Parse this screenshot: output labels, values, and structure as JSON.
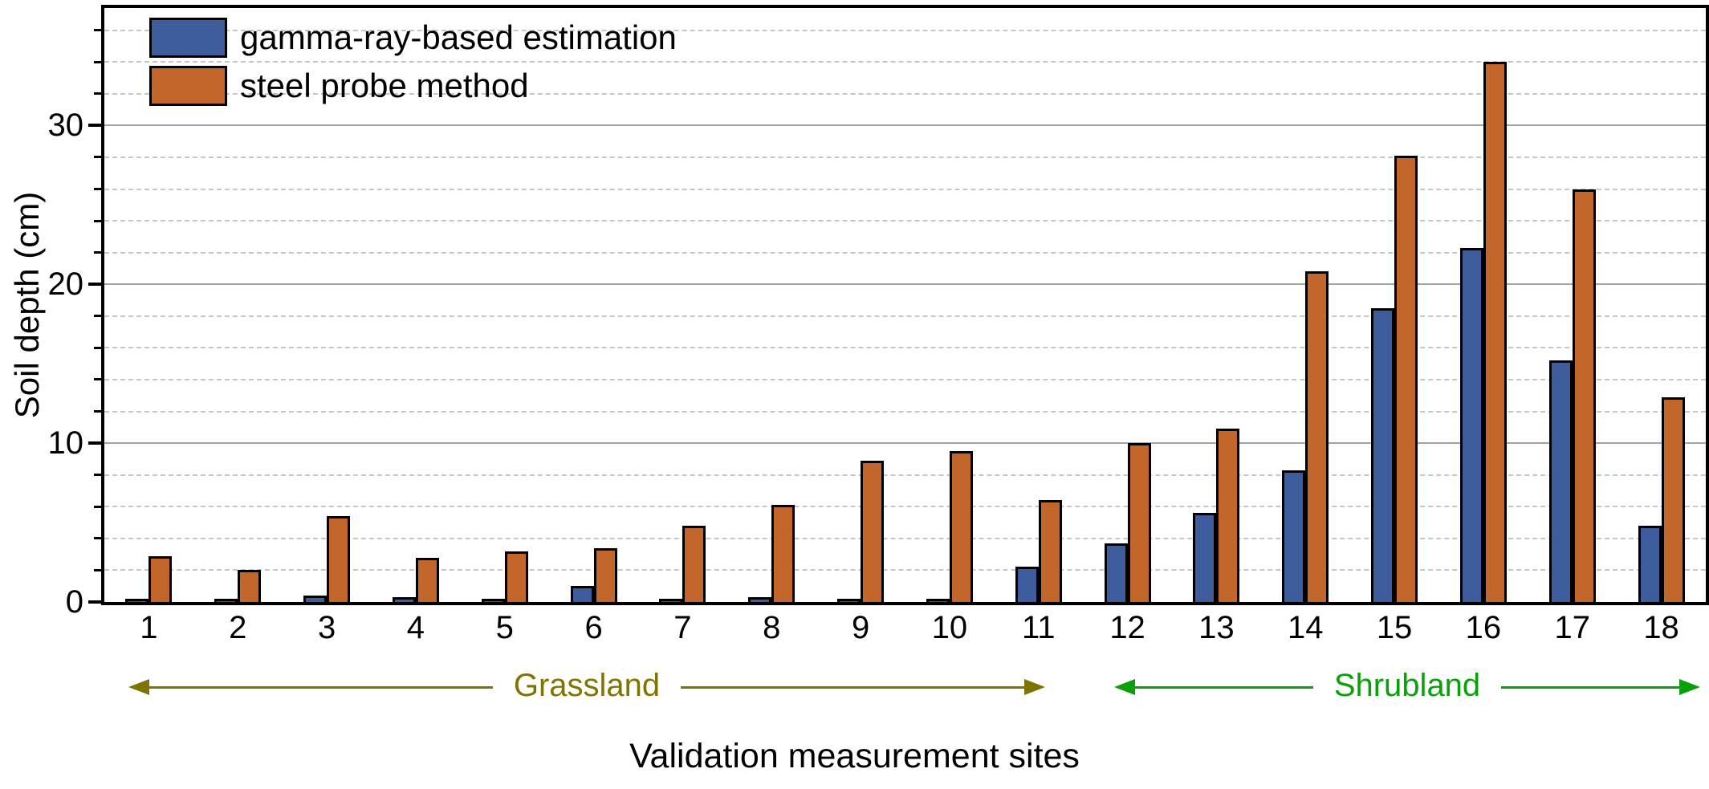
{
  "chart_data": {
    "type": "bar",
    "title": "",
    "xlabel": "Validation measurement sites",
    "ylabel": "Soil depth (cm)",
    "categories": [
      "1",
      "2",
      "3",
      "4",
      "5",
      "6",
      "7",
      "8",
      "9",
      "10",
      "11",
      "12",
      "13",
      "14",
      "15",
      "16",
      "17",
      "18"
    ],
    "series": [
      {
        "name": "gamma-ray-based estimation",
        "color": "#3e5c9c",
        "values": [
          0.1,
          0.1,
          0.4,
          0.3,
          0.2,
          1.0,
          0.2,
          0.3,
          0.2,
          0.2,
          2.2,
          3.7,
          5.6,
          8.3,
          18.5,
          22.3,
          15.2,
          4.8
        ]
      },
      {
        "name": "steel probe method",
        "color": "#c2662b",
        "values": [
          2.9,
          2.0,
          5.4,
          2.8,
          3.2,
          3.4,
          4.8,
          6.1,
          8.9,
          9.5,
          6.4,
          10.0,
          10.9,
          20.8,
          28.1,
          34.0,
          26.0,
          12.9
        ]
      }
    ],
    "ylim": [
      0,
      37.4
    ],
    "yticks_major": [
      0,
      10,
      20,
      30
    ],
    "ytick_minor_step": 2,
    "grid": {
      "minor_style": "dotted",
      "major_style": "solid",
      "minor_color": "#c6c6c6",
      "major_color": "#a3a3a3"
    },
    "legend_position": "top-left-inside",
    "bar_outline_color": "#000000",
    "regions": [
      {
        "label": "Grassland",
        "from_site": "1",
        "to_site": "11",
        "color": "#7f7400"
      },
      {
        "label": "Shrubland",
        "from_site": "12",
        "to_site": "18",
        "color": "#0aa00a"
      }
    ]
  }
}
